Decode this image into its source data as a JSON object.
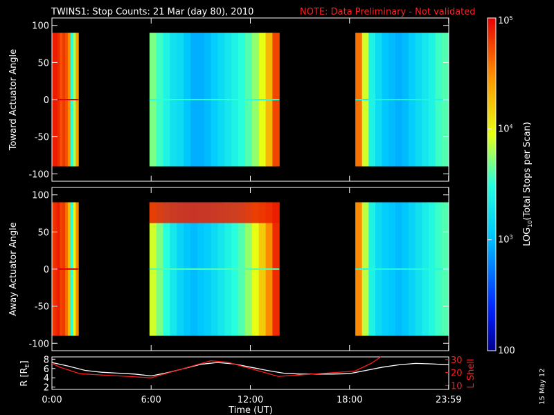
{
  "chart_data": [
    {
      "type": "heatmap",
      "panel": "toward",
      "title_main": "TWINS1: Stop Counts: 21 Mar (day  80), 2010",
      "title_note": "NOTE: Data Preliminary - Not validated",
      "ylabel": "Toward Actuator Angle",
      "xlim_hours": [
        0,
        24
      ],
      "ylim": [
        -110,
        110
      ],
      "yticks": [
        "100",
        "50",
        "0",
        "-50",
        "-100"
      ],
      "data_y_range": [
        -90,
        90
      ],
      "segments": [
        {
          "start_h": 0.0,
          "end_h": 1.6,
          "profile": [
            4.9,
            4.9,
            4.85,
            4.7,
            4.8,
            4.7,
            4.5,
            3.5,
            3.8,
            4.4
          ]
        },
        {
          "start_h": 5.9,
          "end_h": 13.75,
          "profile": [
            3.7,
            3.55,
            3.4,
            3.25,
            3.2,
            3.05,
            2.95,
            2.95,
            3.0,
            3.1,
            3.2,
            3.3,
            3.4,
            3.5,
            3.6,
            3.75,
            3.95,
            4.3,
            4.75
          ]
        },
        {
          "start_h": 18.35,
          "end_h": 23.99,
          "profile": [
            4.6,
            3.9,
            3.4,
            3.2,
            3.05,
            3.0,
            2.95,
            3.0,
            3.1,
            3.2,
            3.3,
            3.4,
            3.55,
            3.6
          ]
        }
      ]
    },
    {
      "type": "heatmap",
      "panel": "away",
      "ylabel": "Away Actuator Angle",
      "xlim_hours": [
        0,
        24
      ],
      "ylim": [
        -110,
        110
      ],
      "yticks": [
        "100",
        "50",
        "0",
        "-50",
        "-100"
      ],
      "data_y_range": [
        -90,
        90
      ],
      "segments": [
        {
          "start_h": 0.0,
          "end_h": 1.6,
          "profile": [
            4.8,
            4.85,
            4.9,
            4.75,
            4.8,
            4.6,
            4.3,
            3.5,
            4.0,
            4.5
          ]
        },
        {
          "start_h": 5.9,
          "end_h": 13.75,
          "profile": [
            3.9,
            3.7,
            3.5,
            3.3,
            3.15,
            3.05,
            3.0,
            3.05,
            3.1,
            3.2,
            3.3,
            3.4,
            3.5,
            3.6,
            3.75,
            3.95,
            4.2,
            4.5,
            4.85
          ]
        },
        {
          "start_h": 18.35,
          "end_h": 23.99,
          "profile": [
            4.5,
            3.85,
            3.4,
            3.2,
            3.1,
            3.05,
            3.0,
            3.05,
            3.15,
            3.25,
            3.35,
            3.45,
            3.55,
            3.6
          ]
        }
      ],
      "top_band": {
        "start_h": 5.9,
        "end_h": 13.75,
        "y_from": 62,
        "y_to": 90,
        "log_value": 4.9
      }
    },
    {
      "type": "line",
      "panel": "orbit",
      "ylabel_left": "R [R",
      "ylabel_left_sub": "E",
      "ylabel_left_end": "]",
      "ylabel_right": "L Shell",
      "xlabel": "Time (UT)",
      "xticks": [
        "0:00",
        "6:00",
        "12:00",
        "18:00",
        "23:59"
      ],
      "xtick_hours": [
        0,
        6,
        12,
        18,
        23.99
      ],
      "ylim_left": [
        1.5,
        8.5
      ],
      "yticks_left": [
        "8",
        "6",
        "4",
        "2"
      ],
      "ylim_right": [
        7,
        32
      ],
      "yticks_right": [
        "30",
        "20",
        "10"
      ],
      "series": [
        {
          "color": "#ffffff",
          "x": [
            0,
            1,
            2,
            3,
            4,
            5,
            6,
            7,
            8,
            9,
            10,
            11,
            12,
            13,
            14,
            15,
            16,
            17,
            18,
            19,
            20,
            21,
            22,
            23,
            23.99
          ],
          "y": [
            7.3,
            6.5,
            5.6,
            5.2,
            5.0,
            4.8,
            4.4,
            5.1,
            6.0,
            6.9,
            7.3,
            7.0,
            6.3,
            5.6,
            5.0,
            4.8,
            4.8,
            4.8,
            4.9,
            5.6,
            6.3,
            6.8,
            7.1,
            7.0,
            6.8
          ]
        },
        {
          "color": "#ff1a1a",
          "axis": "right",
          "x": [
            0,
            0.5,
            1.7,
            6.0,
            9.6,
            10.6,
            13.7,
            18.3,
            19.3,
            19.9
          ],
          "y": [
            27,
            24,
            19,
            16,
            29,
            28,
            17,
            21,
            27,
            32
          ]
        }
      ]
    }
  ],
  "colorbar": {
    "label": "LOG",
    "label_sub": "10",
    "label_end": "(Total Stops per Scan)",
    "range_log": [
      2,
      5
    ],
    "ticks": [
      {
        "log": 5,
        "base": "10",
        "exp": "5"
      },
      {
        "log": 4,
        "base": "10",
        "exp": "4"
      },
      {
        "log": 3,
        "base": "10",
        "exp": "3"
      },
      {
        "log": 2,
        "base": "100",
        "exp": ""
      }
    ]
  },
  "footer": {
    "date_stamp": "15 May 12"
  }
}
